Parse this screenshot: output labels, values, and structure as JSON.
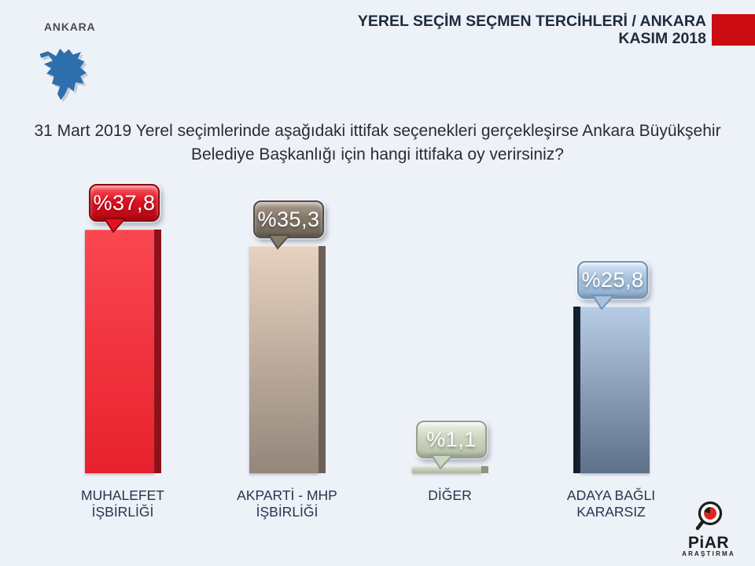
{
  "page": {
    "background": "#edf1f8"
  },
  "header": {
    "region_label": "ANKARA",
    "map_icon_color": "#2d6fad",
    "title_line1": "YEREL SEÇİM SEÇMEN TERCİHLERİ / ANKARA",
    "title_line2": "KASIM 2018",
    "accent_block_color": "#cb0d13"
  },
  "question": {
    "line1": "31 Mart 2019 Yerel seçimlerinde aşağıdaki ittifak seçenekleri gerçekleşirse Ankara Büyükşehir",
    "line2": "Belediye Başkanlığı için hangi ittifaka oy verirsiniz?"
  },
  "chart_data": {
    "type": "bar",
    "title": "YEREL SEÇİM SEÇMEN TERCİHLERİ / ANKARA — KASIM 2018",
    "xlabel": "",
    "ylabel": "",
    "ylim": [
      0,
      40
    ],
    "grid": false,
    "legend": "none",
    "value_unit": "percent",
    "categories": [
      "MUHALEFET İŞBİRLİĞİ",
      "AKPARTİ - MHP İŞBİRLİĞİ",
      "DİĞER",
      "ADAYA BAĞLI KARARSIZ"
    ],
    "values": [
      37.8,
      35.3,
      1.1,
      25.8
    ],
    "bars": [
      {
        "category_lines": [
          "MUHALEFET",
          "İŞBİRLİĞİ"
        ],
        "value": 37.8,
        "label": "%37,8",
        "colors": {
          "bar_top": "#fa4750",
          "bar_bottom": "#e7212d",
          "edge": "#8f1019",
          "edge_side": "right",
          "bubble_border": "#8c070e",
          "bubble_top": "#fa5a64",
          "bubble_mid": "#e01322",
          "bubble_bottom": "#b50710"
        }
      },
      {
        "category_lines": [
          "AKPARTİ - MHP",
          "İŞBİRLİĞİ"
        ],
        "value": 35.3,
        "label": "%35,3",
        "colors": {
          "bar_top": "#e7d2c0",
          "bar_bottom": "#93867a",
          "edge": "#6b6156",
          "edge_side": "right",
          "bubble_border": "#544d45",
          "bubble_top": "#ab9e8e",
          "bubble_mid": "#85796b",
          "bubble_bottom": "#6d6357"
        }
      },
      {
        "category_lines": [
          "DİĞER"
        ],
        "value": 1.1,
        "label": "%1,1",
        "colors": {
          "bar_top": "#dde3d3",
          "bar_bottom": "#aab4a0",
          "edge": "#8d9681",
          "edge_side": "right",
          "bubble_border": "#96a189",
          "bubble_top": "#f0f3e9",
          "bubble_mid": "#cdd6c1",
          "bubble_bottom": "#b3bfa6"
        }
      },
      {
        "category_lines": [
          "ADAYA BAĞLI",
          "KARARSIZ"
        ],
        "value": 25.8,
        "label": "%25,8",
        "colors": {
          "bar_top": "#b7cde5",
          "bar_bottom": "#5d7189",
          "edge": "#141f2c",
          "edge_side": "left",
          "bubble_border": "#6f93bb",
          "bubble_top": "#d8e6f5",
          "bubble_mid": "#a9c3de",
          "bubble_bottom": "#8fb0d1"
        }
      }
    ]
  },
  "footer": {
    "logo_text": "PiAR",
    "logo_subtext": "ARAŞTIRMA",
    "logo_accent_color": "#e0251f"
  }
}
